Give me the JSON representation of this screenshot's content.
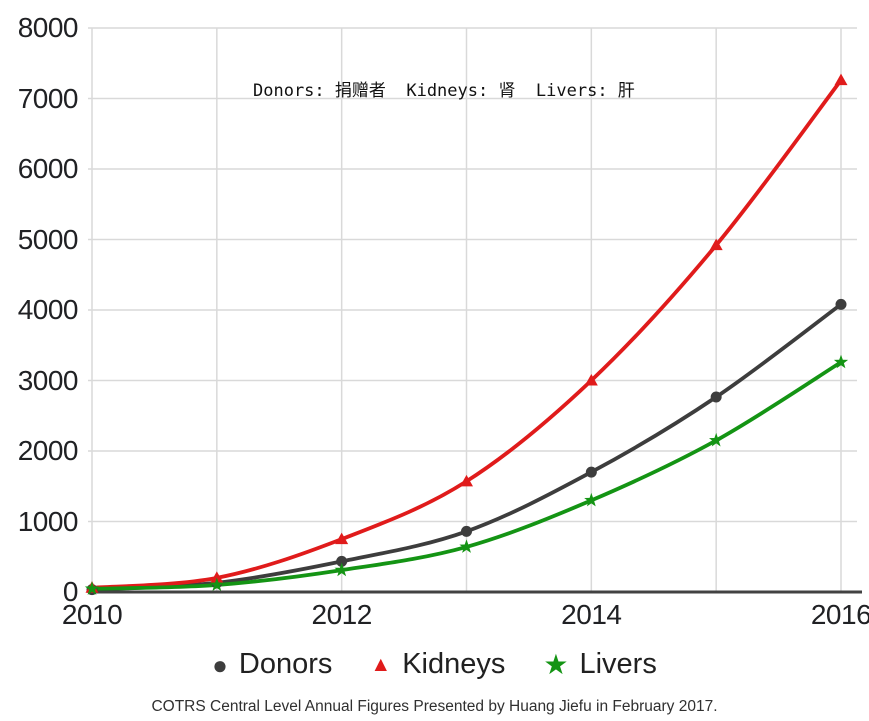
{
  "chart_data": {
    "type": "line",
    "smooth": true,
    "x": [
      2010,
      2011,
      2012,
      2013,
      2014,
      2015,
      2016
    ],
    "x_ticks": [
      2010,
      2012,
      2014,
      2016
    ],
    "y_ticks": [
      0,
      1000,
      2000,
      3000,
      4000,
      5000,
      6000,
      7000,
      8000
    ],
    "xlim": [
      2010,
      2016
    ],
    "ylim": [
      0,
      8000
    ],
    "grid": true,
    "legend_position": "bottom",
    "title": "",
    "xlabel": "",
    "ylabel": "",
    "series": [
      {
        "name": "Donors",
        "marker": "circle",
        "color": "#3d3d3d",
        "values": [
          34,
          130,
          434,
          860,
          1700,
          2766,
          4080
        ]
      },
      {
        "name": "Kidneys",
        "marker": "triangle",
        "color": "#e01b1b",
        "values": [
          60,
          200,
          750,
          1570,
          3000,
          4920,
          7260
        ]
      },
      {
        "name": "Livers",
        "marker": "star",
        "color": "#149414",
        "values": [
          45,
          100,
          310,
          640,
          1300,
          2150,
          3260
        ]
      }
    ],
    "annotation": "Donors: 捐赠者  Kidneys: 肾  Livers: 肝",
    "caption": "COTRS Central Level Annual Figures Presented by Huang Jiefu in February 2017.",
    "colors": {
      "gridline": "#d9d9d9",
      "axis": "#424242",
      "tick_label": "#202124"
    }
  }
}
